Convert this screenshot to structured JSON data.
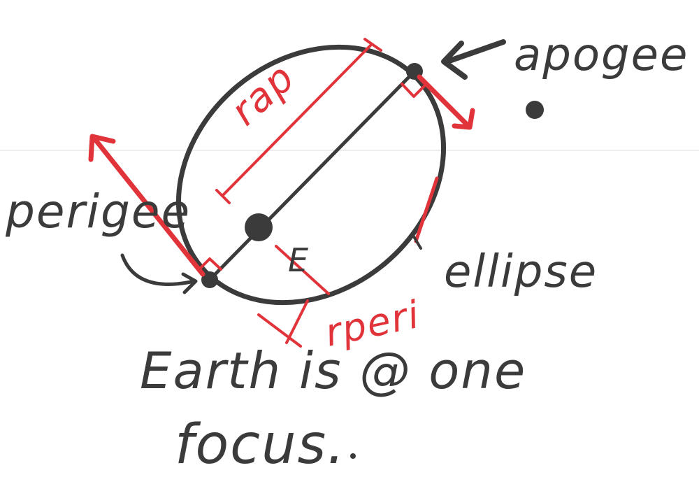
{
  "labels": {
    "apogee": "apogee",
    "perigee": "perigee",
    "earth": "E",
    "ellipse": "ellipse",
    "r_ap": "rap",
    "r_peri": "rperi",
    "caption_line1": "Earth is @ one",
    "caption_line2": "focus."
  },
  "colors": {
    "ink": "#3b3b3b",
    "accent": "#e0333a",
    "background": "#ffffff"
  }
}
